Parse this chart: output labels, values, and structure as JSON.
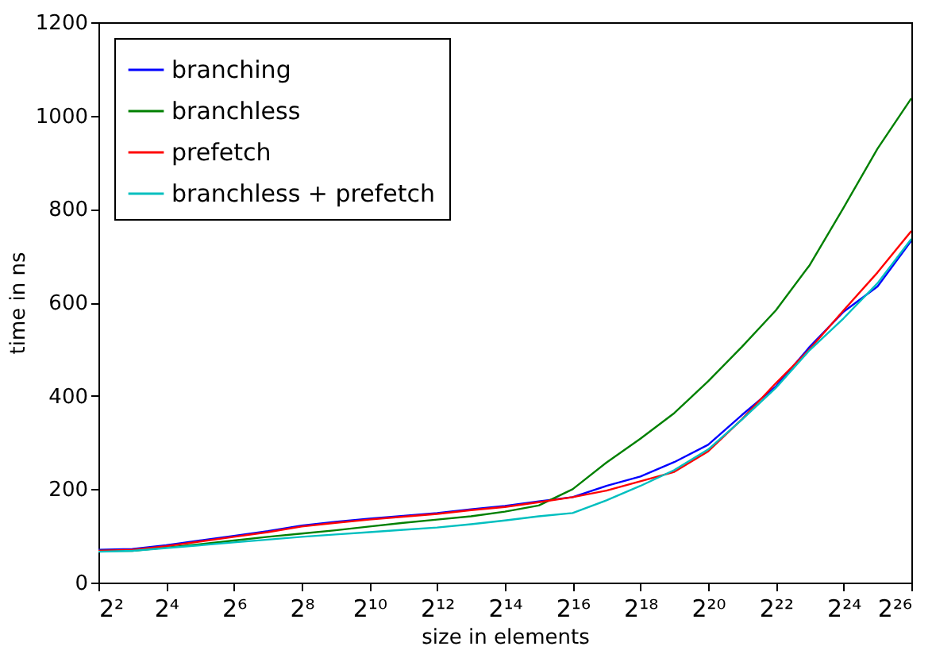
{
  "chart_data": {
    "type": "line",
    "xlabel": "size in elements",
    "ylabel": "time in ns",
    "log": "x",
    "legend": "top left",
    "x": [
      4,
      8,
      16,
      32,
      64,
      128,
      256,
      512,
      1024,
      2048,
      4096,
      8192,
      16384,
      32768,
      65536,
      131072,
      262144,
      524288,
      1048576,
      2097152,
      4194304,
      8388608,
      16777216,
      33554432,
      67108864
    ],
    "series": [
      {
        "name": "branching",
        "color": "#0000ff",
        "values": [
          70,
          72,
          80,
          90,
          100,
          110,
          122,
          130,
          137,
          143,
          149,
          157,
          164,
          174,
          183,
          207,
          227,
          258,
          295,
          359,
          420,
          505,
          580,
          634,
          732
        ]
      },
      {
        "name": "branchless",
        "color": "#008000",
        "values": [
          68,
          68,
          75,
          82,
          90,
          98,
          105,
          112,
          120,
          128,
          135,
          142,
          152,
          165,
          200,
          257,
          308,
          363,
          431,
          505,
          583,
          680,
          803,
          929,
          1037
        ]
      },
      {
        "name": "prefetch",
        "color": "#ff0000",
        "values": [
          68,
          70,
          78,
          88,
          98,
          108,
          120,
          128,
          135,
          141,
          147,
          155,
          162,
          172,
          183,
          197,
          217,
          237,
          281,
          350,
          427,
          500,
          583,
          664,
          753
        ]
      },
      {
        "name": "branchless + prefetch",
        "color": "#00bfbf",
        "values": [
          66,
          68,
          74,
          80,
          86,
          92,
          98,
          103,
          108,
          113,
          118,
          125,
          133,
          142,
          149,
          176,
          207,
          241,
          285,
          349,
          417,
          498,
          566,
          641,
          736
        ]
      }
    ],
    "xlim": [
      4,
      67108864
    ],
    "ylim": [
      0,
      1200
    ],
    "xticks": [
      {
        "value": 4,
        "label": "2²"
      },
      {
        "value": 16,
        "label": "2⁴"
      },
      {
        "value": 64,
        "label": "2⁶"
      },
      {
        "value": 256,
        "label": "2⁸"
      },
      {
        "value": 1024,
        "label": "2¹⁰"
      },
      {
        "value": 4096,
        "label": "2¹²"
      },
      {
        "value": 16384,
        "label": "2¹⁴"
      },
      {
        "value": 65536,
        "label": "2¹⁶"
      },
      {
        "value": 262144,
        "label": "2¹⁸"
      },
      {
        "value": 1048576,
        "label": "2²⁰"
      },
      {
        "value": 4194304,
        "label": "2²²"
      },
      {
        "value": 16777216,
        "label": "2²⁴"
      },
      {
        "value": 67108864,
        "label": "2²⁶"
      }
    ],
    "yticks": [
      0,
      200,
      400,
      600,
      800,
      1000,
      1200
    ]
  }
}
